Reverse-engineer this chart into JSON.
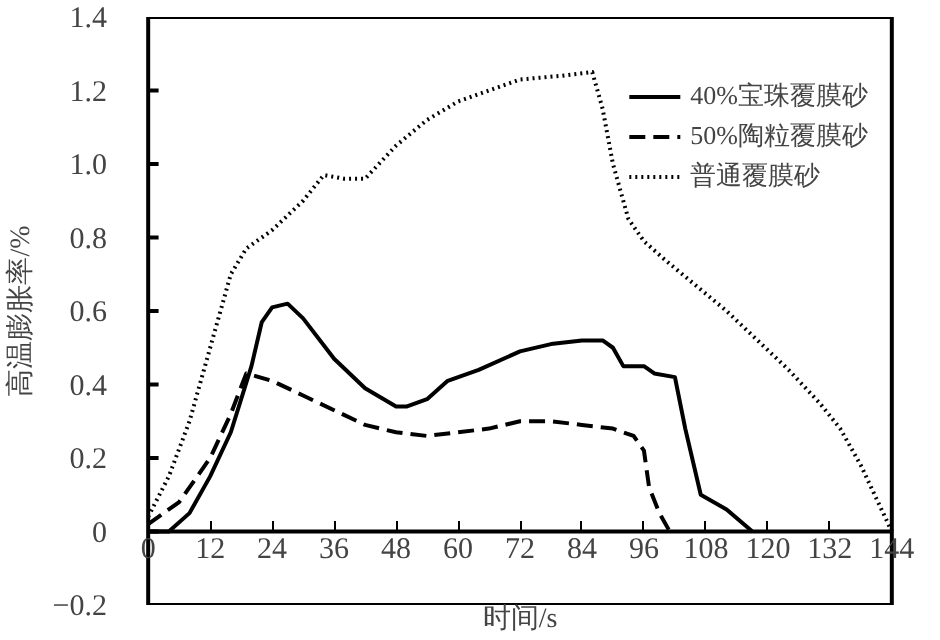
{
  "chart_data": {
    "type": "line",
    "xlabel": "时间/s",
    "ylabel": "高温膨胀率/%",
    "xlim": [
      0,
      144
    ],
    "ylim": [
      -0.2,
      1.4
    ],
    "xticks": [
      0,
      12,
      24,
      36,
      48,
      60,
      72,
      84,
      96,
      108,
      120,
      132,
      144
    ],
    "yticks": [
      -0.2,
      0,
      0.2,
      {
        "value": 0.4,
        "label": "0.4"
      },
      {
        "value": 0.6,
        "label": "0.6"
      },
      {
        "value": 0.8,
        "label": "0.8"
      },
      {
        "value": 1.0,
        "label": "1.0"
      },
      1.2,
      1.4
    ],
    "grid": false,
    "legend": "top right",
    "marker": "none",
    "series": [
      {
        "name": "40%宝珠覆膜砂",
        "color": "#000000",
        "line_style": "solid",
        "x": [
          0,
          4,
          8,
          12,
          16,
          20,
          22,
          24,
          27,
          30,
          36,
          42,
          48,
          50,
          54,
          58,
          64,
          72,
          78,
          84,
          88,
          90,
          92,
          96,
          98,
          102,
          104,
          107,
          112,
          117
        ],
        "values": [
          0,
          0,
          0.05,
          0.15,
          0.27,
          0.45,
          0.57,
          0.61,
          0.62,
          0.58,
          0.47,
          0.39,
          0.34,
          0.34,
          0.36,
          0.41,
          0.44,
          0.49,
          0.51,
          0.52,
          0.52,
          0.5,
          0.45,
          0.45,
          0.43,
          0.42,
          0.28,
          0.1,
          0.06,
          0
        ]
      },
      {
        "name": "50%陶粒覆膜砂",
        "color": "#000000",
        "line_style": "dashed",
        "x": [
          0,
          6,
          12,
          16,
          19,
          24,
          30,
          36,
          42,
          48,
          54,
          60,
          66,
          72,
          78,
          84,
          90,
          94,
          96,
          97,
          99,
          101
        ],
        "values": [
          0.02,
          0.08,
          0.2,
          0.32,
          0.43,
          0.41,
          0.37,
          0.33,
          0.29,
          0.27,
          0.26,
          0.27,
          0.28,
          0.3,
          0.3,
          0.29,
          0.28,
          0.26,
          0.22,
          0.12,
          0.05,
          0
        ]
      },
      {
        "name": "普通覆膜砂",
        "color": "#000000",
        "line_style": "dotted",
        "x": [
          0,
          4,
          8,
          12,
          16,
          19,
          24,
          30,
          34,
          38,
          42,
          48,
          54,
          60,
          66,
          72,
          80,
          86,
          88,
          90,
          93,
          96,
          100,
          106,
          112,
          118,
          124,
          130,
          134,
          138,
          144
        ],
        "values": [
          0.04,
          0.15,
          0.3,
          0.5,
          0.7,
          0.77,
          0.82,
          0.9,
          0.97,
          0.96,
          0.96,
          1.05,
          1.12,
          1.17,
          1.2,
          1.23,
          1.24,
          1.25,
          1.15,
          1.0,
          0.85,
          0.79,
          0.74,
          0.67,
          0.6,
          0.52,
          0.44,
          0.35,
          0.28,
          0.18,
          0
        ]
      }
    ]
  }
}
